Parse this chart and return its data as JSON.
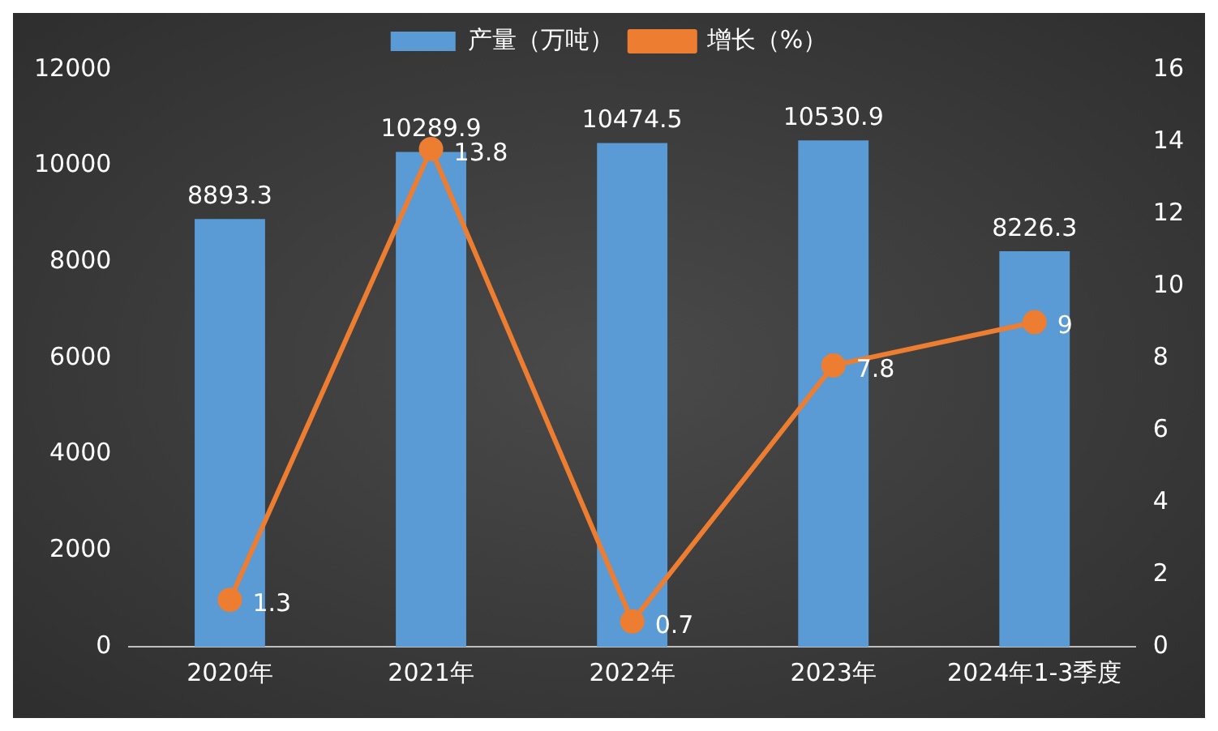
{
  "chart_data": {
    "type": "bar",
    "categories": [
      "2020年",
      "2021年",
      "2022年",
      "2023年",
      "2024年1-3季度"
    ],
    "series": [
      {
        "name": "产量（万吨）",
        "color": "#5b9bd5",
        "values": [
          8893.3,
          10289.9,
          10474.5,
          10530.9,
          8226.3
        ]
      },
      {
        "name": "增长（%）",
        "type": "line",
        "axis": "y2",
        "color": "#ed7d31",
        "values": [
          1.3,
          13.8,
          0.7,
          7.8,
          9
        ]
      }
    ],
    "ylim": [
      0,
      12000
    ],
    "yticks": [
      0,
      2000,
      4000,
      6000,
      8000,
      10000,
      12000
    ],
    "y2lim": [
      0,
      16
    ],
    "y2ticks": [
      0,
      2,
      4,
      6,
      8,
      10,
      12,
      14,
      16
    ],
    "data_labels": true,
    "legend": "top",
    "grid": false,
    "marker": "circle"
  }
}
